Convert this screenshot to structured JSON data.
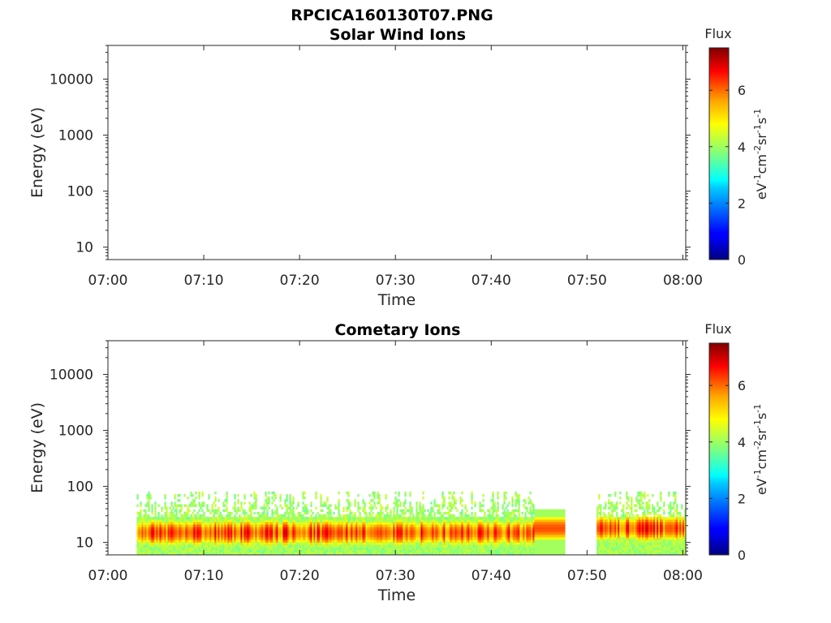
{
  "figure_title": "RPCICA160130T07.PNG",
  "chart_data": [
    {
      "type": "heatmap",
      "title": "Solar Wind Ions",
      "xlabel": "Time",
      "ylabel": "Energy (eV)",
      "x_ticks": [
        "07:00",
        "07:10",
        "07:20",
        "07:30",
        "07:40",
        "07:50",
        "08:00"
      ],
      "xlim_minutes": [
        0,
        60.3
      ],
      "y_scale": "log",
      "ylim": [
        6,
        40000
      ],
      "y_ticks": [
        10,
        100,
        1000,
        10000
      ],
      "y_tick_labels": [
        "10",
        "100",
        "1000",
        "10000"
      ],
      "colorbar": {
        "label": "Flux",
        "unit_label": "eV⁻¹cm⁻²sr⁻¹s⁻¹",
        "range": [
          0,
          7.5
        ],
        "ticks": [
          0,
          2,
          4,
          6
        ],
        "colormap": "jet"
      },
      "data": "empty"
    },
    {
      "type": "heatmap",
      "title": "Cometary Ions",
      "xlabel": "Time",
      "ylabel": "Energy (eV)",
      "x_ticks": [
        "07:00",
        "07:10",
        "07:20",
        "07:30",
        "07:40",
        "07:50",
        "08:00"
      ],
      "xlim_minutes": [
        0,
        60.3
      ],
      "y_scale": "log",
      "ylim": [
        6,
        40000
      ],
      "y_ticks": [
        10,
        100,
        1000,
        10000
      ],
      "y_tick_labels": [
        "10",
        "100",
        "1000",
        "10000"
      ],
      "colorbar": {
        "label": "Flux",
        "unit_label": "eV⁻¹cm⁻²sr⁻¹s⁻¹",
        "range": [
          0,
          7.5
        ],
        "ticks": [
          0,
          2,
          4,
          6
        ],
        "colormap": "jet"
      },
      "data_segments": [
        {
          "t_start": 3.0,
          "t_end": 44.5,
          "e_min": 6,
          "e_max": 80,
          "peak_energy": 15,
          "peak_flux": 6.3
        },
        {
          "t_start": 44.5,
          "t_end": 47.7,
          "e_min": 6,
          "e_max": 40,
          "peak_energy": 18,
          "peak_flux": 6.0
        },
        {
          "t_start": 51.0,
          "t_end": 60.3,
          "e_min": 6,
          "e_max": 80,
          "peak_energy": 18,
          "peak_flux": 6.3
        }
      ]
    }
  ]
}
